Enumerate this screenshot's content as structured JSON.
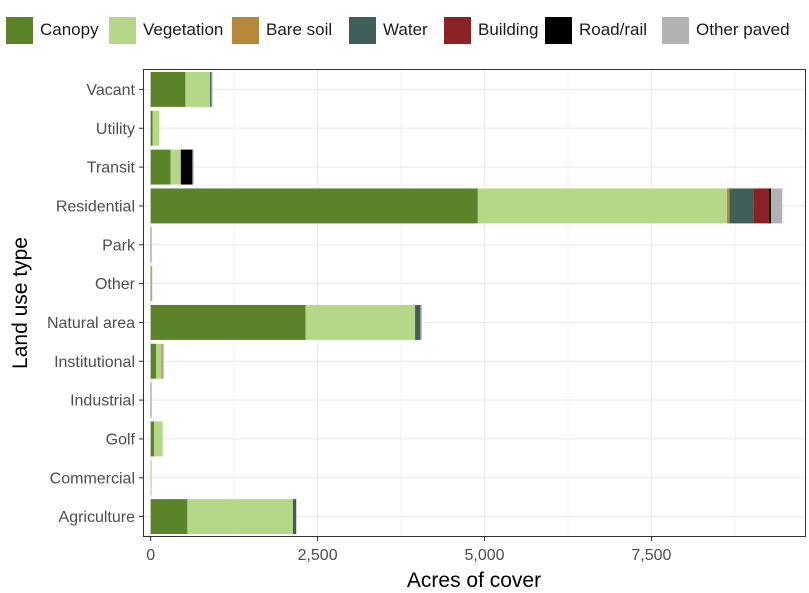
{
  "chart_data": {
    "type": "bar",
    "orientation": "horizontal",
    "stacked": true,
    "title": "",
    "xlabel": "Acres of cover",
    "ylabel": "Land use type",
    "xlim": [
      -100,
      9800
    ],
    "x_ticks": [
      0,
      2500,
      5000,
      7500
    ],
    "x_tick_labels": [
      "0",
      "2,500",
      "5,000",
      "7,500"
    ],
    "categories": [
      "Vacant",
      "Utility",
      "Transit",
      "Residential",
      "Park",
      "Other",
      "Natural area",
      "Institutional",
      "Industrial",
      "Golf",
      "Commercial",
      "Agriculture"
    ],
    "series": [
      {
        "name": "Canopy",
        "color": "#5a832a",
        "values": [
          520,
          30,
          300,
          4900,
          5,
          10,
          2320,
          80,
          5,
          50,
          0,
          550
        ]
      },
      {
        "name": "Vegetation",
        "color": "#b5d888",
        "values": [
          370,
          100,
          150,
          3730,
          10,
          10,
          1640,
          80,
          10,
          130,
          5,
          1580
        ]
      },
      {
        "name": "Bare soil",
        "color": "#b5883c",
        "values": [
          0,
          0,
          0,
          40,
          0,
          0,
          0,
          20,
          0,
          0,
          0,
          0
        ]
      },
      {
        "name": "Water",
        "color": "#3e5f5a",
        "values": [
          20,
          0,
          0,
          360,
          0,
          0,
          80,
          0,
          0,
          0,
          0,
          30
        ]
      },
      {
        "name": "Building",
        "color": "#8b2226",
        "values": [
          0,
          0,
          5,
          230,
          0,
          0,
          0,
          0,
          0,
          0,
          0,
          0
        ]
      },
      {
        "name": "Road/rail",
        "color": "#000000",
        "values": [
          0,
          0,
          170,
          30,
          0,
          0,
          0,
          0,
          0,
          0,
          0,
          10
        ]
      },
      {
        "name": "Other paved",
        "color": "#b2b2b2",
        "values": [
          10,
          0,
          20,
          170,
          0,
          0,
          20,
          10,
          0,
          0,
          0,
          10
        ]
      }
    ],
    "legend_position": "top",
    "grid": true,
    "panel_background": "#ffffff",
    "grid_color": "#ebebeb"
  }
}
